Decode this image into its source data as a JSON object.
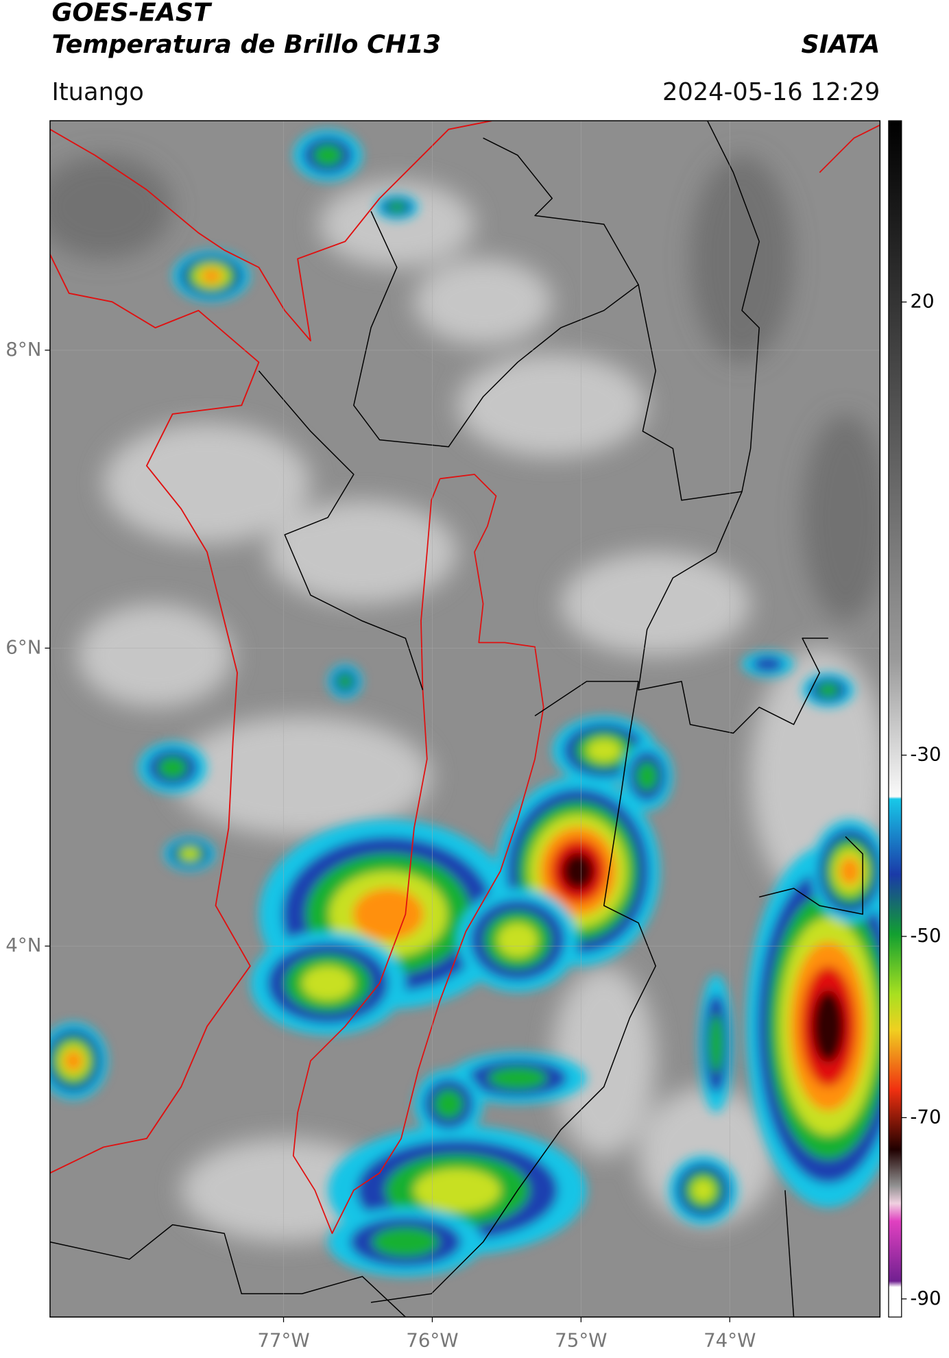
{
  "header": {
    "title": "GOES-EAST",
    "subtitle": "Temperatura de Brillo CH13",
    "source": "SIATA",
    "location": "Ituango",
    "timestamp": "2024-05-16 12:29"
  },
  "map": {
    "xlim": [
      -78.57,
      -72.99
    ],
    "ylim": [
      1.51,
      9.54
    ],
    "xticks": [
      {
        "value": -77,
        "label": "77°W"
      },
      {
        "value": -76,
        "label": "76°W"
      },
      {
        "value": -75,
        "label": "75°W"
      },
      {
        "value": -74,
        "label": "74°W"
      }
    ],
    "yticks": [
      {
        "value": 8,
        "label": "8°N"
      },
      {
        "value": 6,
        "label": "6°N"
      },
      {
        "value": 4,
        "label": "4°N"
      }
    ],
    "grid": true
  },
  "colorbar": {
    "lim": [
      -92,
      40
    ],
    "ticks": [
      20,
      -30,
      -50,
      -70,
      -90
    ]
  }
}
